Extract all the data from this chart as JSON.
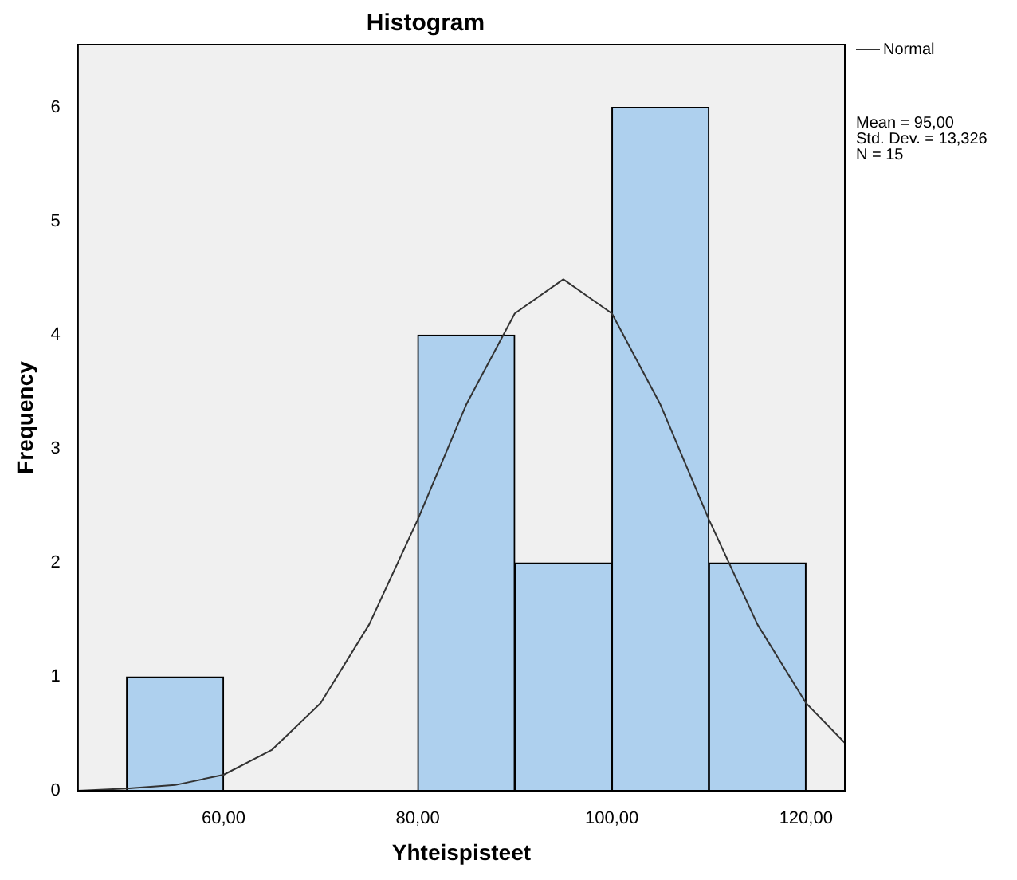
{
  "chart_data": {
    "type": "histogram",
    "title": "Histogram",
    "xlabel": "Yhteispisteet",
    "ylabel": "Frequency",
    "bins": [
      50,
      60,
      70,
      80,
      90,
      100,
      110,
      120
    ],
    "values": [
      1,
      0,
      0,
      4,
      2,
      6,
      2
    ],
    "color": "#aed0ee",
    "series": [
      {
        "name": "Normal",
        "type": "line",
        "color": "#333333",
        "x": [
          45,
          50,
          55,
          60,
          65,
          70,
          75,
          80,
          85,
          90,
          95,
          100,
          105,
          110,
          115,
          120,
          124
        ],
        "values": [
          0,
          0.02,
          0.05,
          0.14,
          0.36,
          0.77,
          1.46,
          2.38,
          3.39,
          4.19,
          4.49,
          4.19,
          3.39,
          2.38,
          1.46,
          0.77,
          0.42
        ]
      }
    ],
    "xlim": [
      45,
      124
    ],
    "xticks": [
      {
        "value": 60,
        "label": "60,00"
      },
      {
        "value": 80,
        "label": "80,00"
      },
      {
        "value": 100,
        "label": "100,00"
      },
      {
        "value": 120,
        "label": "120,00"
      }
    ],
    "ylim": [
      0,
      6.55
    ],
    "yticks": [
      0,
      1,
      2,
      3,
      4,
      5,
      6
    ],
    "grid": false,
    "legend": "top right",
    "annotations": [
      "Mean = 95,00",
      "Std. Dev. = 13,326",
      "N = 15"
    ]
  }
}
